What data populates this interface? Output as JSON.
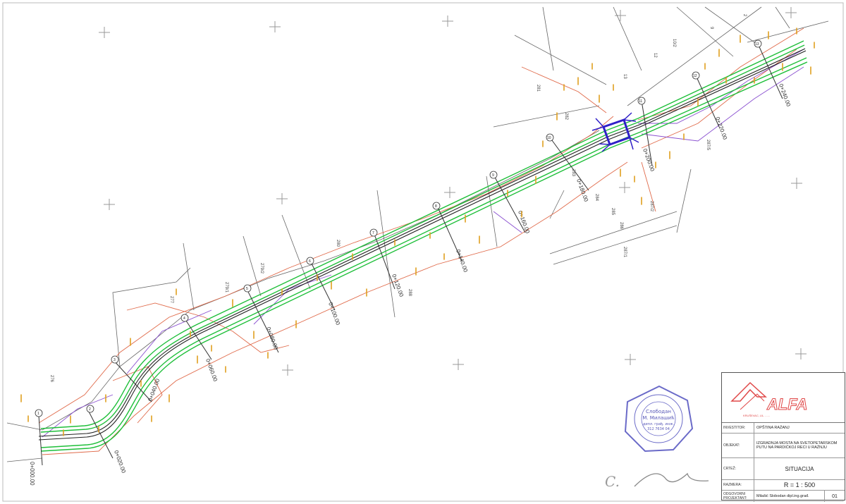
{
  "stations": [
    "0+000.00",
    "0+020.00",
    "0+040.00",
    "0+060.00",
    "0+080.00",
    "0+100.00",
    "0+120.00",
    "0+140.00",
    "0+160.00",
    "0+180.00",
    "0+200.00",
    "0+220.00",
    "0+240.00"
  ],
  "profile_markers": [
    "1",
    "2",
    "3",
    "4",
    "5",
    "6",
    "7",
    "8",
    "9",
    "10",
    "11",
    "12",
    "13"
  ],
  "parcels": [
    "276",
    "277",
    "279/1",
    "279/2",
    "280",
    "281",
    "282",
    "283",
    "284",
    "285",
    "286",
    "287/1",
    "287/2",
    "287/5",
    "288",
    "12",
    "13",
    "10/2",
    "9",
    "2"
  ],
  "colors": {
    "axis": "#222222",
    "edge": "#1fbf3a",
    "parcel_line": "#e06a4a",
    "bridge": "#3020c8",
    "secondary": "#8a50d0",
    "labels": "#e0a020"
  },
  "title_block": {
    "company": "ALFA",
    "company_sub": "KRUŠEVAC, UL. ......",
    "rows": [
      {
        "key": "INVESTITOR:",
        "value": "OPŠTINA RAŽANJ"
      },
      {
        "key": "OBJEKAT:",
        "value": "IZGRADNJA MOSTA NA SVETOPETARSKOM PUTU NA PARDIĆKOJ RECI U RAŽNJU"
      },
      {
        "key": "CRTEŽ:",
        "value": "SITUACIJA"
      },
      {
        "key": "RAZMERA:",
        "value": "R = 1 : 500"
      },
      {
        "key": "ODGOVORNI PROJEKTANT:",
        "value": "Milašić Slobodan dipl.ing.građ."
      }
    ],
    "sheet": "01"
  },
  "stamp": {
    "line1": "Слободан",
    "line2": "М. Милашић",
    "line3": "дипл. грађ. инж.",
    "line4": "312 7634 04"
  },
  "signature": "C."
}
